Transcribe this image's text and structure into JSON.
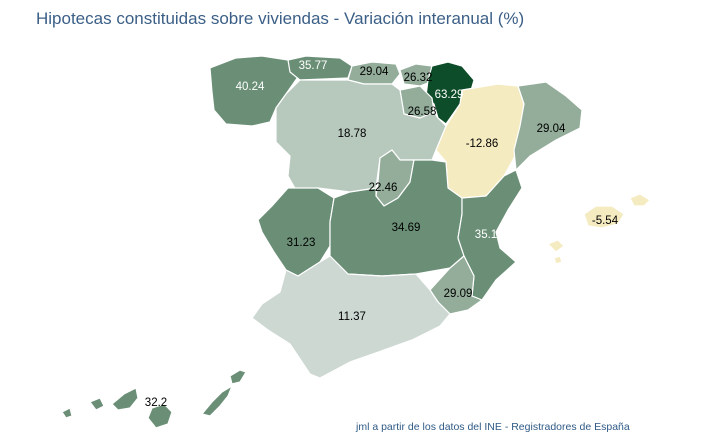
{
  "title": "Hipotecas constituidas sobre viviendas - Variación interanual (%)",
  "credit": "jml a partir de los datos del INE - Registradores de España",
  "colors": {
    "negative": "#f5ebc1",
    "lowest": "#cdd8d2",
    "low": "#b7c8bd",
    "mid": "#93ad9a",
    "high": "#6a8f76",
    "extreme": "#0d4d2a",
    "label_dark": "#000000",
    "label_light": "#ffffff"
  },
  "regions": [
    {
      "name": "Galicia",
      "value": "40.24",
      "color": "high",
      "label_color": "label_light"
    },
    {
      "name": "Asturias",
      "value": "35.77",
      "color": "high",
      "label_color": "label_light"
    },
    {
      "name": "Cantabria",
      "value": "29.04",
      "color": "mid",
      "label_color": "label_dark"
    },
    {
      "name": "País Vasco",
      "value": "26.32",
      "color": "mid",
      "label_color": "label_dark"
    },
    {
      "name": "Navarra",
      "value": "63.29",
      "color": "extreme",
      "label_color": "label_light"
    },
    {
      "name": "La Rioja",
      "value": "26.58",
      "color": "mid",
      "label_color": "label_dark"
    },
    {
      "name": "Aragón",
      "value": "-12.86",
      "color": "negative",
      "label_color": "label_dark"
    },
    {
      "name": "Cataluña",
      "value": "29.04",
      "color": "mid",
      "label_color": "label_dark"
    },
    {
      "name": "Castilla y León",
      "value": "18.78",
      "color": "low",
      "label_color": "label_dark"
    },
    {
      "name": "Madrid",
      "value": "22.46",
      "color": "mid",
      "label_color": "label_dark"
    },
    {
      "name": "Extremadura",
      "value": "31.23",
      "color": "high",
      "label_color": "label_dark"
    },
    {
      "name": "Castilla-La Mancha",
      "value": "34.69",
      "color": "high",
      "label_color": "label_dark"
    },
    {
      "name": "Comunitat Valenciana",
      "value": "35.1",
      "color": "high",
      "label_color": "label_light"
    },
    {
      "name": "Región de Murcia",
      "value": "29.09",
      "color": "mid",
      "label_color": "label_dark"
    },
    {
      "name": "Andalucía",
      "value": "11.37",
      "color": "lowest",
      "label_color": "label_dark"
    },
    {
      "name": "Illes Balears",
      "value": "-5.54",
      "color": "negative",
      "label_color": "label_dark"
    },
    {
      "name": "Canarias",
      "value": "32.2",
      "color": "high",
      "label_color": "label_dark"
    }
  ]
}
